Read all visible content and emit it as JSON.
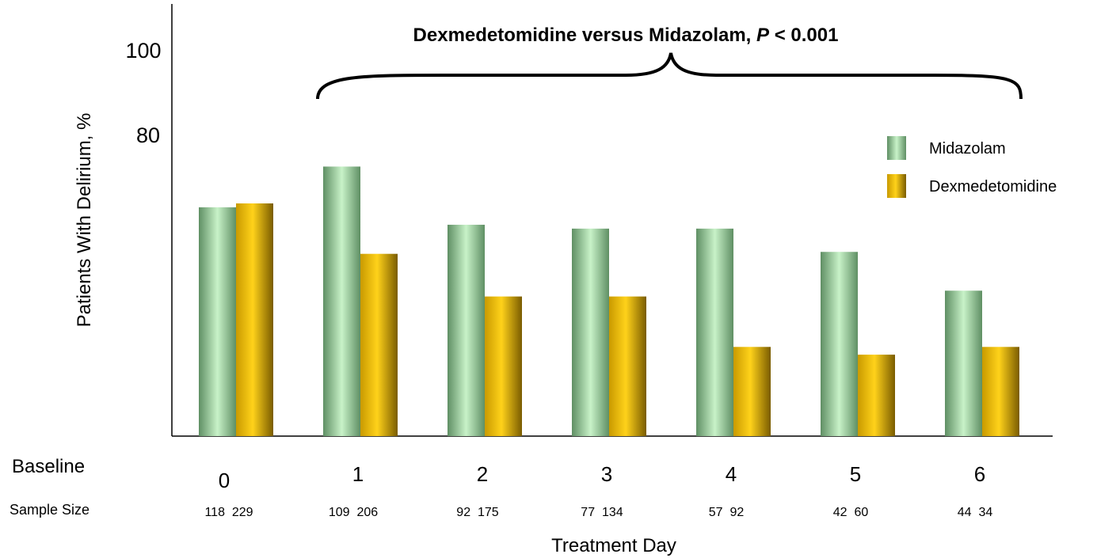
{
  "chart_data": {
    "type": "bar",
    "title_main": "Dexmedetomidine versus Midazolam, ",
    "title_p": "P",
    "title_rest": " < 0.001",
    "ylabel": "Patients With Delirium, %",
    "xlabel": "Treatment Day",
    "ylim": [
      0,
      100
    ],
    "yticks": [
      "100",
      "80"
    ],
    "categories": [
      "0",
      "1",
      "2",
      "3",
      "4",
      "5",
      "6"
    ],
    "series": [
      {
        "name": "Midazolam",
        "color": "#a6d6a6",
        "values": [
          59,
          69.5,
          54.5,
          53.5,
          53.5,
          47.5,
          37.5
        ]
      },
      {
        "name": "Dexmedetomidine",
        "color": "#f2c200",
        "values": [
          60,
          47,
          36,
          36,
          23,
          21,
          23
        ]
      }
    ],
    "row_labels": {
      "baseline": "Baseline",
      "sample_size": "Sample Size"
    },
    "sample_sizes": [
      "118  229",
      "109  206",
      "92  175",
      "77  134",
      "57  92",
      "42  60",
      "44  34"
    ],
    "legend_position": "right",
    "grid": false
  }
}
